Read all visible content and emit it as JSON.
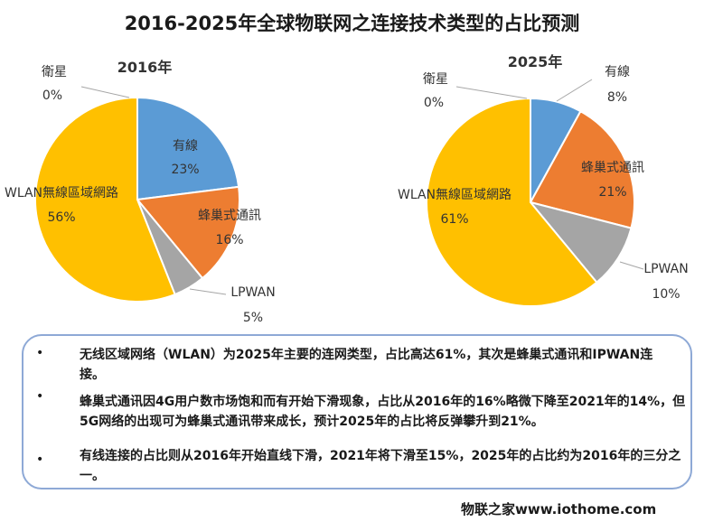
{
  "title": "2016-2025年全球物联网之连接技术类型的占比预测",
  "chart_data": [
    {
      "type": "pie",
      "title": "2016年",
      "slices": [
        {
          "label": "有線",
          "value": 23,
          "value_label": "23%",
          "color": "#5b9bd5"
        },
        {
          "label": "蜂巢式通訊",
          "value": 16,
          "value_label": "16%",
          "color": "#ed7d31"
        },
        {
          "label": "LPWAN",
          "value": 5,
          "value_label": "5%",
          "color": "#a5a5a5"
        },
        {
          "label": "WLAN無線區域網路",
          "value": 56,
          "value_label": "56%",
          "color": "#ffc000"
        },
        {
          "label": "衛星",
          "value": 0,
          "value_label": "0%",
          "color": "#4472c4"
        }
      ]
    },
    {
      "type": "pie",
      "title": "2025年",
      "slices": [
        {
          "label": "有線",
          "value": 8,
          "value_label": "8%",
          "color": "#5b9bd5"
        },
        {
          "label": "蜂巢式通訊",
          "value": 21,
          "value_label": "21%",
          "color": "#ed7d31"
        },
        {
          "label": "LPWAN",
          "value": 10,
          "value_label": "10%",
          "color": "#a5a5a5"
        },
        {
          "label": "WLAN無線區域網路",
          "value": 61,
          "value_label": "61%",
          "color": "#ffc000"
        },
        {
          "label": "衛星",
          "value": 0,
          "value_label": "0%",
          "color": "#4472c4"
        }
      ]
    }
  ],
  "notes": [
    {
      "marker": "•",
      "text": "无线区域网络（WLAN）为2025年主要的连网类型，占比高达61%，其次是蜂巢式通讯和IPWAN连接。"
    },
    {
      "marker": "•",
      "text": "蜂巢式通讯因4G用户数市场饱和而有开始下滑现象，占比从2016年的16%略微下降至2021年的14%，但5G网络的出现可为蜂巢式通讯带来成长，预计2025年的占比将反弹攀升到21%。"
    },
    {
      "marker": "•",
      "text": "有线连接的占比则从2016年开始直线下滑，2021年将下滑至15%，2025年的占比约为2016年的三分之一。"
    }
  ],
  "footer": "物联之家www.iothome.com"
}
